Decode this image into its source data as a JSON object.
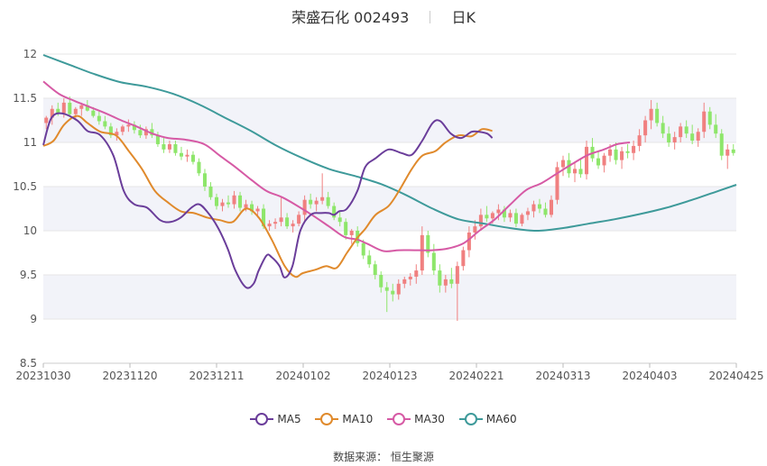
{
  "header": {
    "stock_name": "荣盛石化",
    "stock_code": "002493",
    "period": "日K"
  },
  "source_label": "数据来源：",
  "source_name": "恒生聚源",
  "colors": {
    "up": "#f08080",
    "down": "#8ee66b",
    "ma5": "#6a3d9a",
    "ma10": "#e08a2c",
    "ma30": "#d65aa5",
    "ma60": "#3e9a9a",
    "band": "#f2f3f9",
    "grid": "#e6e6e6"
  },
  "chart_data": {
    "type": "candlestick",
    "title": "荣盛石化 002493 日K",
    "ylim": [
      8.5,
      12
    ],
    "yticks": [
      "8.5",
      "9",
      "9.5",
      "10",
      "10.5",
      "11",
      "11.5",
      "12"
    ],
    "x_tick_labels": [
      "20231030",
      "20231120",
      "20231211",
      "20240102",
      "20240123",
      "20240221",
      "20240313",
      "20240403",
      "20240425"
    ],
    "legend": [
      "MA5",
      "MA10",
      "MA30",
      "MA60"
    ],
    "candles_ohlc": [
      [
        11.22,
        11.3,
        11.15,
        11.28
      ],
      [
        11.28,
        11.42,
        11.2,
        11.38
      ],
      [
        11.38,
        11.45,
        11.3,
        11.33
      ],
      [
        11.33,
        11.5,
        11.28,
        11.45
      ],
      [
        11.45,
        11.52,
        11.3,
        11.32
      ],
      [
        11.32,
        11.4,
        11.25,
        11.38
      ],
      [
        11.38,
        11.45,
        11.3,
        11.42
      ],
      [
        11.42,
        11.48,
        11.35,
        11.36
      ],
      [
        11.36,
        11.4,
        11.28,
        11.3
      ],
      [
        11.3,
        11.35,
        11.2,
        11.24
      ],
      [
        11.24,
        11.3,
        11.15,
        11.18
      ],
      [
        11.18,
        11.22,
        11.05,
        11.08
      ],
      [
        11.08,
        11.16,
        11.02,
        11.12
      ],
      [
        11.12,
        11.2,
        11.08,
        11.18
      ],
      [
        11.18,
        11.26,
        11.12,
        11.2
      ],
      [
        11.2,
        11.24,
        11.1,
        11.14
      ],
      [
        11.14,
        11.2,
        11.05,
        11.08
      ],
      [
        11.08,
        11.18,
        11.04,
        11.15
      ],
      [
        11.15,
        11.22,
        11.05,
        11.08
      ],
      [
        11.08,
        11.12,
        10.95,
        10.98
      ],
      [
        10.98,
        11.05,
        10.88,
        10.92
      ],
      [
        10.92,
        11.02,
        10.88,
        10.98
      ],
      [
        10.98,
        11.02,
        10.85,
        10.88
      ],
      [
        10.88,
        10.95,
        10.8,
        10.84
      ],
      [
        10.84,
        10.92,
        10.78,
        10.86
      ],
      [
        10.86,
        10.9,
        10.75,
        10.78
      ],
      [
        10.78,
        10.82,
        10.62,
        10.65
      ],
      [
        10.65,
        10.7,
        10.45,
        10.5
      ],
      [
        10.5,
        10.55,
        10.35,
        10.38
      ],
      [
        10.38,
        10.42,
        10.24,
        10.28
      ],
      [
        10.28,
        10.36,
        10.22,
        10.32
      ],
      [
        10.32,
        10.4,
        10.26,
        10.3
      ],
      [
        10.3,
        10.45,
        10.25,
        10.4
      ],
      [
        10.4,
        10.44,
        10.22,
        10.26
      ],
      [
        10.26,
        10.35,
        10.22,
        10.3
      ],
      [
        10.3,
        10.34,
        10.18,
        10.22
      ],
      [
        10.22,
        10.28,
        10.15,
        10.25
      ],
      [
        10.25,
        10.3,
        10.02,
        10.05
      ],
      [
        10.05,
        10.12,
        10.0,
        10.08
      ],
      [
        10.08,
        10.14,
        10.02,
        10.1
      ],
      [
        10.1,
        10.38,
        10.05,
        10.15
      ],
      [
        10.15,
        10.2,
        10.02,
        10.05
      ],
      [
        10.05,
        10.12,
        9.98,
        10.08
      ],
      [
        10.08,
        10.22,
        10.05,
        10.18
      ],
      [
        10.18,
        10.4,
        10.1,
        10.35
      ],
      [
        10.35,
        10.42,
        10.25,
        10.3
      ],
      [
        10.3,
        10.38,
        10.22,
        10.34
      ],
      [
        10.34,
        10.65,
        10.3,
        10.38
      ],
      [
        10.38,
        10.44,
        10.25,
        10.28
      ],
      [
        10.28,
        10.32,
        10.12,
        10.15
      ],
      [
        10.15,
        10.22,
        10.05,
        10.1
      ],
      [
        10.1,
        10.14,
        9.9,
        9.95
      ],
      [
        9.95,
        10.02,
        9.85,
        10.0
      ],
      [
        10.0,
        10.05,
        9.82,
        9.86
      ],
      [
        9.86,
        9.9,
        9.68,
        9.72
      ],
      [
        9.72,
        9.78,
        9.58,
        9.62
      ],
      [
        9.62,
        9.66,
        9.45,
        9.5
      ],
      [
        9.5,
        9.54,
        9.3,
        9.36
      ],
      [
        9.36,
        9.42,
        9.08,
        9.32
      ],
      [
        9.32,
        9.4,
        9.2,
        9.28
      ],
      [
        9.28,
        9.45,
        9.22,
        9.4
      ],
      [
        9.4,
        9.48,
        9.35,
        9.45
      ],
      [
        9.45,
        9.52,
        9.38,
        9.48
      ],
      [
        9.48,
        9.62,
        9.4,
        9.55
      ],
      [
        9.55,
        10.05,
        9.5,
        9.95
      ],
      [
        9.95,
        10.0,
        9.7,
        9.75
      ],
      [
        9.75,
        9.85,
        9.5,
        9.55
      ],
      [
        9.55,
        9.62,
        9.3,
        9.38
      ],
      [
        9.38,
        9.5,
        9.3,
        9.45
      ],
      [
        9.45,
        9.58,
        9.35,
        9.4
      ],
      [
        9.4,
        9.65,
        8.98,
        9.6
      ],
      [
        9.6,
        9.82,
        9.55,
        9.78
      ],
      [
        9.78,
        10.05,
        9.7,
        9.98
      ],
      [
        9.98,
        10.12,
        9.9,
        10.05
      ],
      [
        10.05,
        10.25,
        10.0,
        10.18
      ],
      [
        10.18,
        10.28,
        10.1,
        10.14
      ],
      [
        10.14,
        10.22,
        10.08,
        10.2
      ],
      [
        10.2,
        10.3,
        10.12,
        10.24
      ],
      [
        10.24,
        10.28,
        10.1,
        10.15
      ],
      [
        10.15,
        10.24,
        10.1,
        10.2
      ],
      [
        10.2,
        10.25,
        10.04,
        10.08
      ],
      [
        10.08,
        10.2,
        10.05,
        10.18
      ],
      [
        10.18,
        10.26,
        10.12,
        10.22
      ],
      [
        10.22,
        10.34,
        10.15,
        10.3
      ],
      [
        10.3,
        10.36,
        10.2,
        10.25
      ],
      [
        10.25,
        10.32,
        10.15,
        10.18
      ],
      [
        10.18,
        10.4,
        10.15,
        10.35
      ],
      [
        10.35,
        10.78,
        10.3,
        10.72
      ],
      [
        10.72,
        10.85,
        10.62,
        10.8
      ],
      [
        10.8,
        10.88,
        10.6,
        10.65
      ],
      [
        10.65,
        10.78,
        10.55,
        10.7
      ],
      [
        10.7,
        10.82,
        10.6,
        10.64
      ],
      [
        10.64,
        11.02,
        10.58,
        10.95
      ],
      [
        10.95,
        11.05,
        10.78,
        10.82
      ],
      [
        10.82,
        10.9,
        10.7,
        10.74
      ],
      [
        10.74,
        10.88,
        10.66,
        10.85
      ],
      [
        10.85,
        10.98,
        10.78,
        10.92
      ],
      [
        10.92,
        11.0,
        10.75,
        10.8
      ],
      [
        10.8,
        10.95,
        10.7,
        10.9
      ],
      [
        10.9,
        10.98,
        10.82,
        10.88
      ],
      [
        10.88,
        11.02,
        10.8,
        10.96
      ],
      [
        10.96,
        11.15,
        10.9,
        11.08
      ],
      [
        11.08,
        11.3,
        11.0,
        11.25
      ],
      [
        11.25,
        11.48,
        11.15,
        11.38
      ],
      [
        11.38,
        11.45,
        11.18,
        11.22
      ],
      [
        11.22,
        11.3,
        11.05,
        11.1
      ],
      [
        11.1,
        11.18,
        10.95,
        11.0
      ],
      [
        11.0,
        11.12,
        10.92,
        11.06
      ],
      [
        11.06,
        11.22,
        11.0,
        11.18
      ],
      [
        11.18,
        11.25,
        11.05,
        11.1
      ],
      [
        11.1,
        11.2,
        10.98,
        11.02
      ],
      [
        11.02,
        11.16,
        10.95,
        11.12
      ],
      [
        11.12,
        11.45,
        11.05,
        11.35
      ],
      [
        11.35,
        11.4,
        11.15,
        11.2
      ],
      [
        11.2,
        11.32,
        11.05,
        11.1
      ],
      [
        11.1,
        11.15,
        10.8,
        10.85
      ],
      [
        10.85,
        10.98,
        10.7,
        10.92
      ],
      [
        10.92,
        10.98,
        10.85,
        10.88
      ]
    ],
    "ma5": [
      [
        0,
        10.97
      ],
      [
        3,
        11.27
      ],
      [
        7,
        11.33
      ],
      [
        13,
        11.25
      ],
      [
        17,
        11.13
      ],
      [
        22,
        11.08
      ],
      [
        27,
        10.85
      ],
      [
        31,
        10.45
      ],
      [
        35,
        10.3
      ],
      [
        40,
        10.26
      ],
      [
        45,
        10.12
      ],
      [
        49,
        10.1
      ],
      [
        53,
        10.15
      ],
      [
        57,
        10.26
      ],
      [
        60,
        10.3
      ],
      [
        63,
        10.22
      ],
      [
        67,
        10.05
      ],
      [
        71,
        9.8
      ],
      [
        74,
        9.55
      ],
      [
        78,
        9.36
      ],
      [
        81,
        9.4
      ],
      [
        83,
        9.55
      ],
      [
        86,
        9.72
      ],
      [
        88,
        9.7
      ],
      [
        91,
        9.6
      ],
      [
        93,
        9.47
      ],
      [
        96,
        9.6
      ],
      [
        99,
        10.0
      ],
      [
        103,
        10.18
      ],
      [
        107,
        10.2
      ],
      [
        110,
        10.2
      ],
      [
        112,
        10.18
      ],
      [
        114,
        10.22
      ],
      [
        117,
        10.25
      ],
      [
        121,
        10.45
      ],
      [
        124,
        10.72
      ],
      [
        128,
        10.82
      ],
      [
        133,
        10.92
      ],
      [
        138,
        10.88
      ],
      [
        142,
        10.86
      ],
      [
        146,
        11.02
      ],
      [
        150,
        11.22
      ],
      [
        153,
        11.24
      ],
      [
        157,
        11.1
      ],
      [
        161,
        11.05
      ],
      [
        165,
        11.12
      ],
      [
        168,
        11.12
      ],
      [
        171,
        11.1
      ],
      [
        173,
        11.05
      ]
    ],
    "ma10": [
      [
        0,
        10.96
      ],
      [
        4,
        11.02
      ],
      [
        8,
        11.2
      ],
      [
        13,
        11.3
      ],
      [
        17,
        11.22
      ],
      [
        22,
        11.12
      ],
      [
        28,
        11.08
      ],
      [
        33,
        10.9
      ],
      [
        38,
        10.7
      ],
      [
        43,
        10.45
      ],
      [
        48,
        10.32
      ],
      [
        53,
        10.22
      ],
      [
        58,
        10.2
      ],
      [
        63,
        10.15
      ],
      [
        68,
        10.12
      ],
      [
        73,
        10.1
      ],
      [
        78,
        10.25
      ],
      [
        83,
        10.15
      ],
      [
        88,
        9.9
      ],
      [
        93,
        9.6
      ],
      [
        97,
        9.48
      ],
      [
        100,
        9.52
      ],
      [
        105,
        9.56
      ],
      [
        109,
        9.6
      ],
      [
        113,
        9.58
      ],
      [
        117,
        9.75
      ],
      [
        121,
        9.92
      ],
      [
        124,
        10.02
      ],
      [
        128,
        10.18
      ],
      [
        133,
        10.28
      ],
      [
        137,
        10.45
      ],
      [
        142,
        10.7
      ],
      [
        146,
        10.85
      ],
      [
        151,
        10.9
      ],
      [
        155,
        11.0
      ],
      [
        160,
        11.08
      ],
      [
        165,
        11.07
      ],
      [
        169,
        11.15
      ],
      [
        173,
        11.13
      ]
    ],
    "ma30": [
      [
        0,
        11.69
      ],
      [
        6,
        11.55
      ],
      [
        12,
        11.47
      ],
      [
        18,
        11.4
      ],
      [
        24,
        11.33
      ],
      [
        30,
        11.25
      ],
      [
        36,
        11.18
      ],
      [
        42,
        11.1
      ],
      [
        48,
        11.05
      ],
      [
        55,
        11.03
      ],
      [
        62,
        10.98
      ],
      [
        68,
        10.85
      ],
      [
        74,
        10.72
      ],
      [
        80,
        10.58
      ],
      [
        86,
        10.45
      ],
      [
        92,
        10.38
      ],
      [
        98,
        10.28
      ],
      [
        104,
        10.17
      ],
      [
        110,
        10.05
      ],
      [
        116,
        9.93
      ],
      [
        121,
        9.9
      ],
      [
        125,
        9.85
      ],
      [
        131,
        9.77
      ],
      [
        137,
        9.78
      ],
      [
        143,
        9.78
      ],
      [
        150,
        9.78
      ],
      [
        156,
        9.8
      ],
      [
        162,
        9.86
      ],
      [
        168,
        10.0
      ],
      [
        174,
        10.13
      ],
      [
        180,
        10.3
      ],
      [
        186,
        10.46
      ],
      [
        192,
        10.54
      ],
      [
        198,
        10.65
      ],
      [
        204,
        10.76
      ],
      [
        210,
        10.86
      ],
      [
        216,
        10.92
      ],
      [
        221,
        10.98
      ],
      [
        226,
        11.0
      ]
    ],
    "ma60": [
      [
        0,
        11.99
      ],
      [
        10,
        11.88
      ],
      [
        20,
        11.77
      ],
      [
        30,
        11.68
      ],
      [
        40,
        11.63
      ],
      [
        50,
        11.55
      ],
      [
        60,
        11.43
      ],
      [
        70,
        11.28
      ],
      [
        80,
        11.13
      ],
      [
        90,
        10.96
      ],
      [
        100,
        10.82
      ],
      [
        110,
        10.7
      ],
      [
        120,
        10.62
      ],
      [
        130,
        10.53
      ],
      [
        140,
        10.4
      ],
      [
        150,
        10.25
      ],
      [
        160,
        10.13
      ],
      [
        170,
        10.08
      ],
      [
        180,
        10.03
      ],
      [
        190,
        10.0
      ],
      [
        200,
        10.03
      ],
      [
        210,
        10.08
      ],
      [
        220,
        10.13
      ],
      [
        230,
        10.19
      ],
      [
        240,
        10.26
      ],
      [
        250,
        10.35
      ],
      [
        260,
        10.45
      ],
      [
        267,
        10.52
      ]
    ]
  }
}
